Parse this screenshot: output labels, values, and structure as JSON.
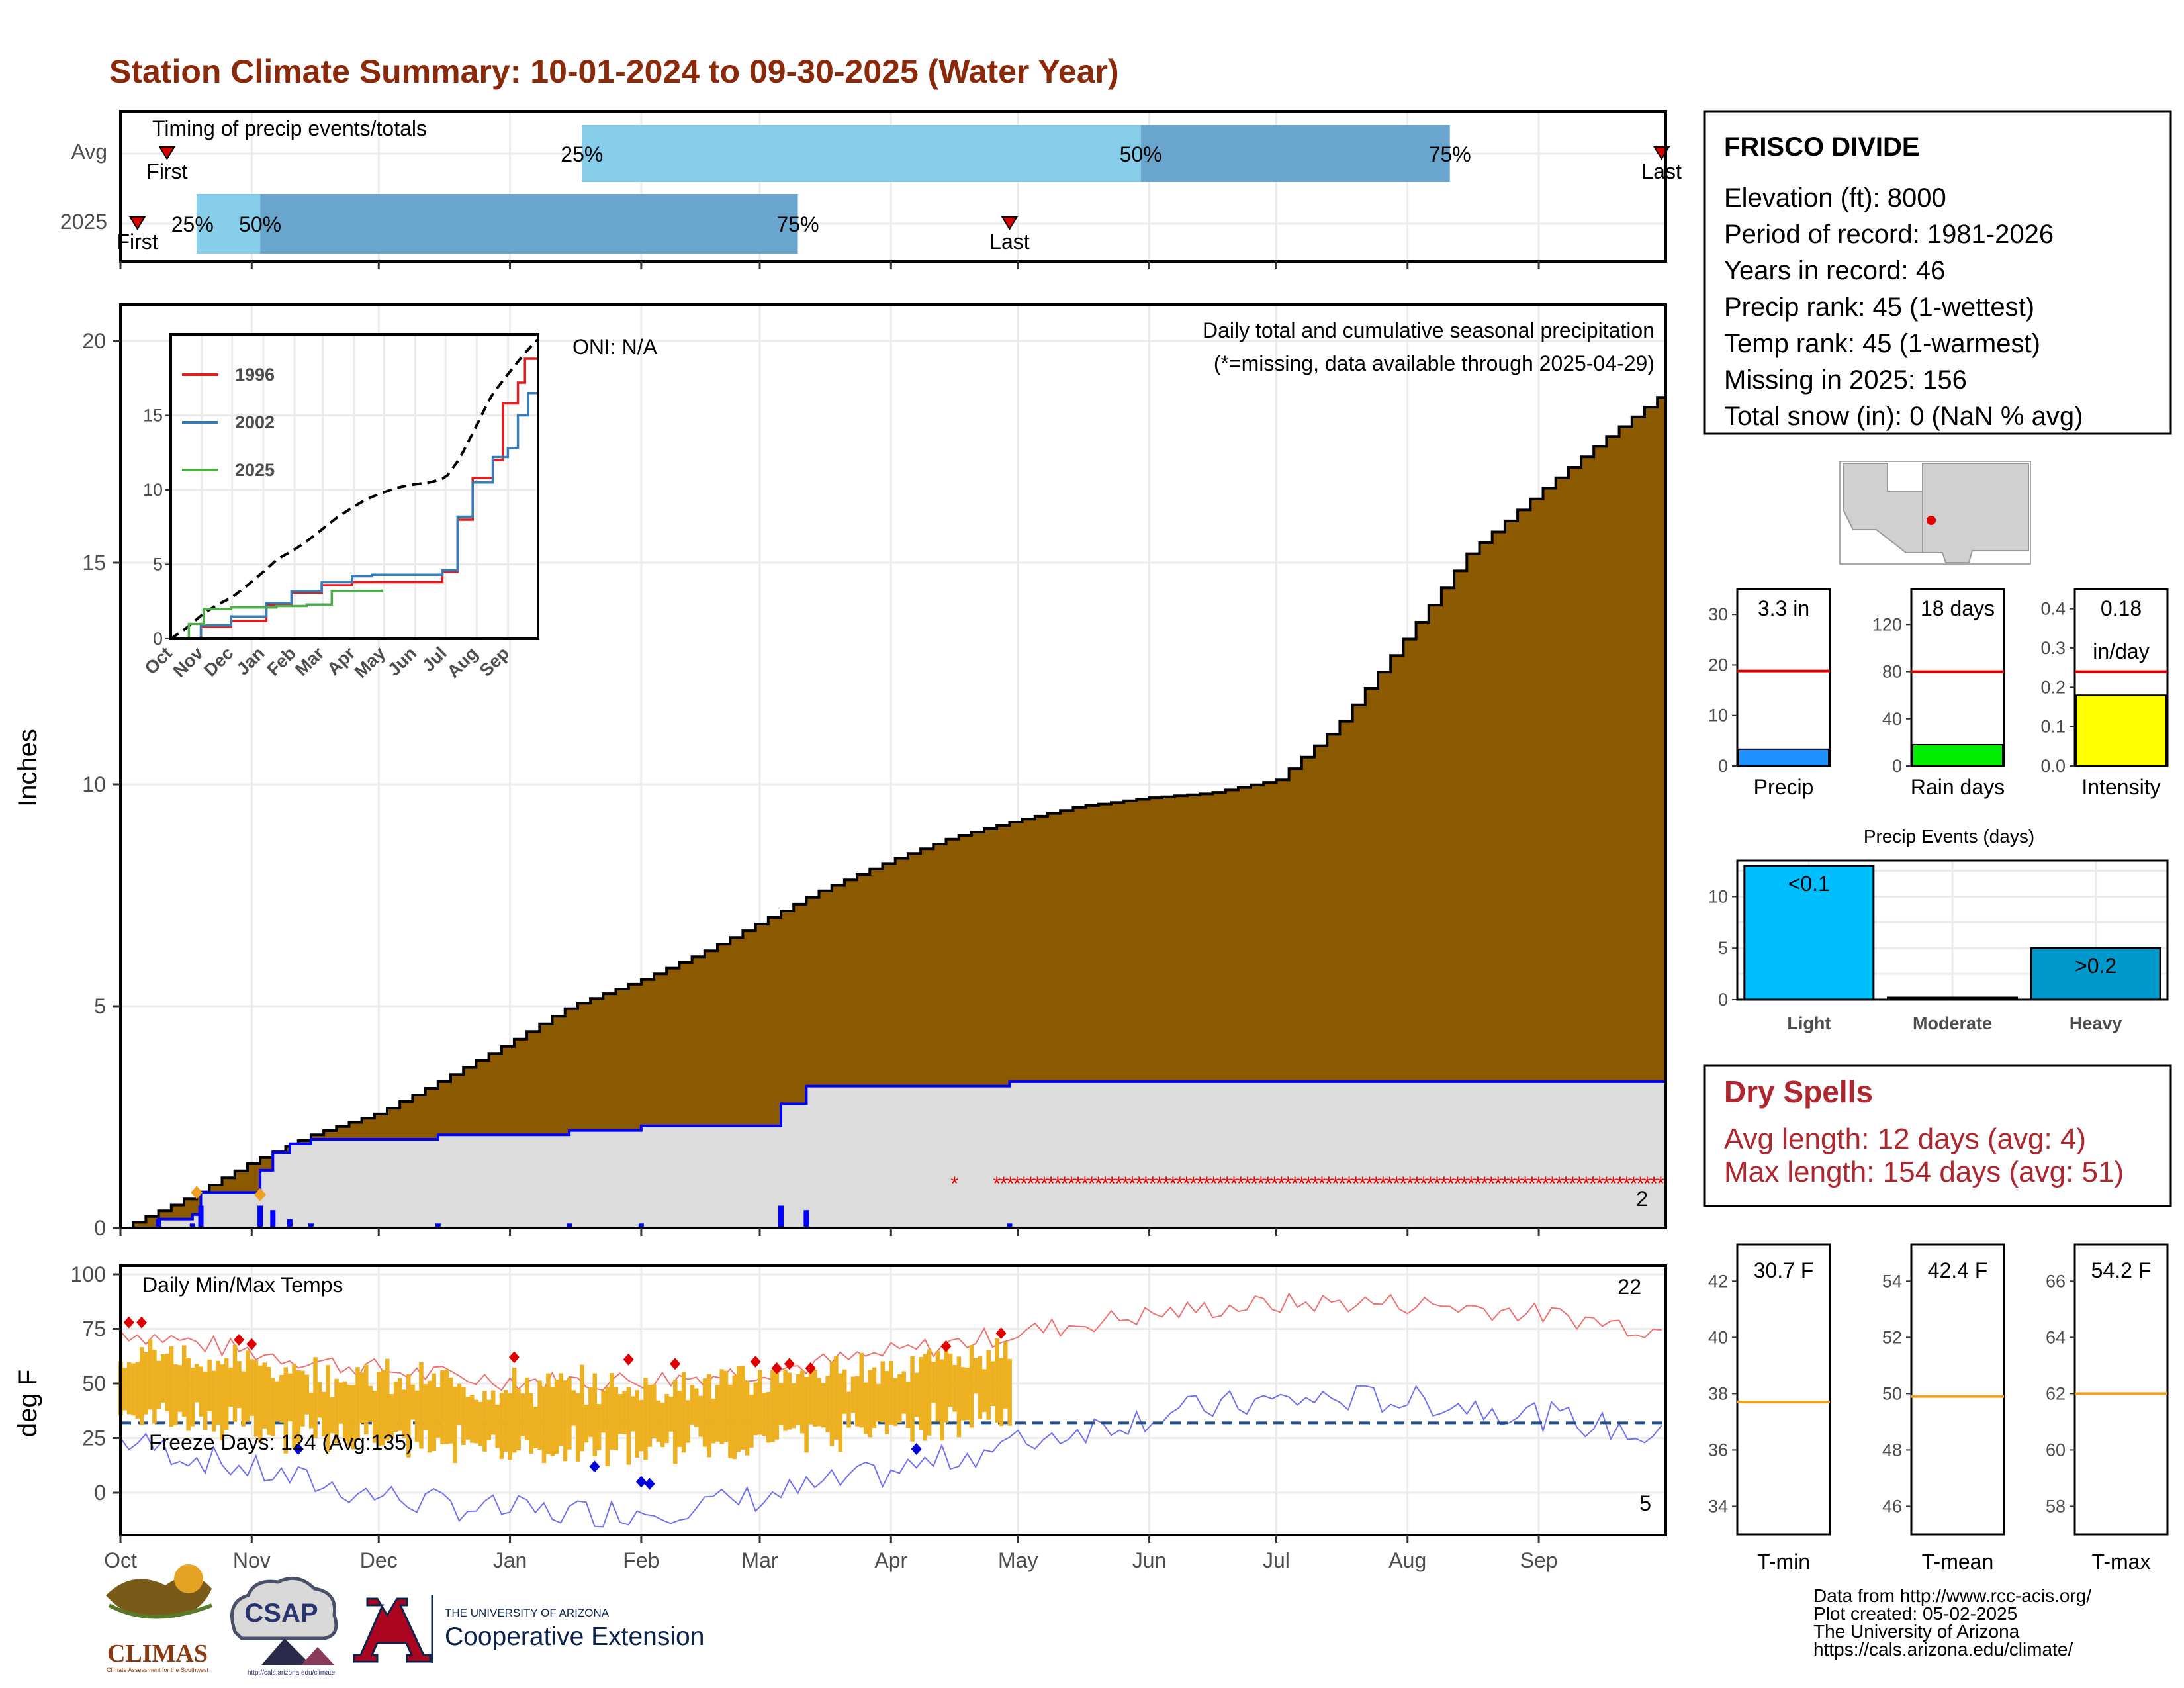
{
  "title": "Station Climate Summary: 10-01-2024 to 09-30-2025 (Water Year)",
  "timing": {
    "label": "Timing of precip events/totals",
    "rows": [
      "Avg",
      "2025"
    ],
    "first_label": "First",
    "last_label": "Last",
    "avg": {
      "first_day": 11,
      "q25_day": 109,
      "q50_day": 241,
      "q75_day": 314,
      "last_day": 364
    },
    "y2025": {
      "first_day": 4,
      "q25_day": 18,
      "q50_day": 33,
      "q75_day": 160,
      "last_day": 210
    },
    "pct_labels": [
      "25%",
      "50%",
      "75%"
    ],
    "colors": {
      "light": "#87ceeb",
      "dark": "#6aa5cd",
      "marker": "#dd0000"
    }
  },
  "precip_panel": {
    "ylabel": "Inches",
    "yticks": [
      "0",
      "5",
      "10",
      "15",
      "20"
    ],
    "oni": "ONI: N/A",
    "caption": "Daily total and cumulative seasonal precipitation",
    "missing_note": "(*=missing, data available through 2025-04-29)",
    "end_label": "2"
  },
  "inset": {
    "yticks": [
      "0",
      "5",
      "10",
      "15"
    ],
    "months": [
      "Oct",
      "Nov",
      "Dec",
      "Jan",
      "Feb",
      "Mar",
      "Apr",
      "May",
      "Jun",
      "Jul",
      "Aug",
      "Sep"
    ],
    "legend": [
      {
        "name": "1996",
        "color": "#e41a1c"
      },
      {
        "name": "2002",
        "color": "#377eb8"
      },
      {
        "name": "2025",
        "color": "#4daf4a"
      }
    ]
  },
  "temp_panel": {
    "ylabel": "deg F",
    "yticks": [
      "0",
      "25",
      "50",
      "75",
      "100"
    ],
    "caption": "Daily Min/Max Temps",
    "freeze_label": "Freeze Days: 124 (Avg:135)",
    "max_count": "22",
    "min_count": "5"
  },
  "x_months": [
    "Oct",
    "Nov",
    "Dec",
    "Jan",
    "Feb",
    "Mar",
    "Apr",
    "May",
    "Jun",
    "Jul",
    "Aug",
    "Sep"
  ],
  "station": {
    "name": "FRISCO DIVIDE",
    "lines": [
      "Elevation (ft): 8000",
      "Period of record: 1981-2026",
      "Years in record: 46",
      "Precip rank: 45 (1-wettest)",
      "Temp rank: 45 (1-warmest)",
      "Missing in 2025: 156",
      "Total snow (in): 0 (NaN % avg)"
    ]
  },
  "mini_bars": [
    {
      "label": "Precip",
      "value_label": "3.3 in",
      "value": 3.3,
      "avg": 18.8,
      "max": 35,
      "ticks": [
        "0",
        "10",
        "20",
        "30"
      ],
      "color": "#1e90ff"
    },
    {
      "label": "Rain days",
      "value_label": "18 days",
      "value": 18,
      "avg": 80,
      "max": 150,
      "ticks": [
        "0",
        "40",
        "80",
        "120"
      ],
      "color": "#00ee00"
    },
    {
      "label": "Intensity",
      "value_label": "0.18",
      "value_label2": "in/day",
      "value": 0.18,
      "avg": 0.24,
      "max": 0.45,
      "ticks": [
        "0.0",
        "0.1",
        "0.2",
        "0.3",
        "0.4"
      ],
      "color": "#ffff00"
    }
  ],
  "precip_events": {
    "title": "Precip Events (days)",
    "yticks": [
      "0",
      "5",
      "10"
    ],
    "categories": [
      "Light",
      "Moderate",
      "Heavy"
    ],
    "values": [
      13,
      0,
      5
    ],
    "bar_labels": [
      "<0.1",
      "",
      ">0.2"
    ],
    "colors": [
      "#00bfff",
      "#00bfff",
      "#0099cc"
    ]
  },
  "dry_spells": {
    "title": "Dry Spells",
    "lines": [
      "Avg length: 12 days (avg: 4)",
      "Max length: 154 days (avg: 51)"
    ]
  },
  "temp_bars": [
    {
      "label": "T-min",
      "value_label": "30.7 F",
      "avg": 37.7,
      "ticks": [
        "34",
        "36",
        "38",
        "40",
        "42"
      ]
    },
    {
      "label": "T-mean",
      "value_label": "42.4 F",
      "avg": 49.9,
      "ticks": [
        "46",
        "48",
        "50",
        "52",
        "54"
      ]
    },
    {
      "label": "T-max",
      "value_label": "54.2 F",
      "avg": 62.0,
      "ticks": [
        "58",
        "60",
        "62",
        "64",
        "66"
      ]
    }
  ],
  "footer": [
    "Data from http://www.rcc-acis.org/",
    "Plot created: 05-02-2025",
    "The University of Arizona",
    "https://cals.arizona.edu/climate/"
  ],
  "logos": {
    "climas": "CLIMAS",
    "climas_sub": "Climate Assessment for the Southwest",
    "csap": "CSAP",
    "csap_url": "http://cals.arizona.edu/climate",
    "ua_small": "THE UNIVERSITY OF ARIZONA",
    "ua_big": "Cooperative Extension"
  },
  "chart_data": {
    "type": "area",
    "title": "Daily total and cumulative seasonal precipitation",
    "ylabel": "Inches",
    "ylim": [
      0,
      20.5
    ],
    "x_range": [
      "2024-10-01",
      "2025-09-30"
    ],
    "series": [
      {
        "name": "Avg",
        "x": [
          "Oct 1",
          "Oct 15",
          "Nov 1",
          "Nov 15",
          "Dec 1",
          "Dec 15",
          "Jan 1",
          "Jan 15",
          "Feb 1",
          "Feb 15",
          "Mar 1",
          "Mar 15",
          "Apr 1",
          "Apr 15",
          "May 1",
          "May 15",
          "Jun 1",
          "Jun 15",
          "Jul 1",
          "Jul 15",
          "Aug 1",
          "Aug 15",
          "Sep 1",
          "Sep 15",
          "Sep 30"
        ],
        "values": [
          0.0,
          0.6,
          1.5,
          2.1,
          2.6,
          3.3,
          4.2,
          5.0,
          5.6,
          6.2,
          6.9,
          7.6,
          8.3,
          8.8,
          9.2,
          9.5,
          9.7,
          9.8,
          10.1,
          11.3,
          13.4,
          15.2,
          16.6,
          17.7,
          18.8
        ]
      },
      {
        "name": "2025",
        "x": [
          "Oct 1",
          "Oct 10",
          "Oct 18",
          "Oct 20",
          "Nov 3",
          "Nov 6",
          "Nov 10",
          "Nov 15",
          "Dec 15",
          "Jan 15",
          "Feb 1",
          "Mar 1",
          "Mar 6",
          "Mar 12",
          "Apr 29",
          "Sep 30"
        ],
        "values": [
          0.0,
          0.2,
          0.3,
          0.8,
          1.3,
          1.7,
          1.9,
          2.0,
          2.1,
          2.2,
          2.3,
          2.3,
          2.8,
          3.2,
          3.3,
          3.3
        ]
      }
    ],
    "missing_from": "2025-04-30"
  }
}
